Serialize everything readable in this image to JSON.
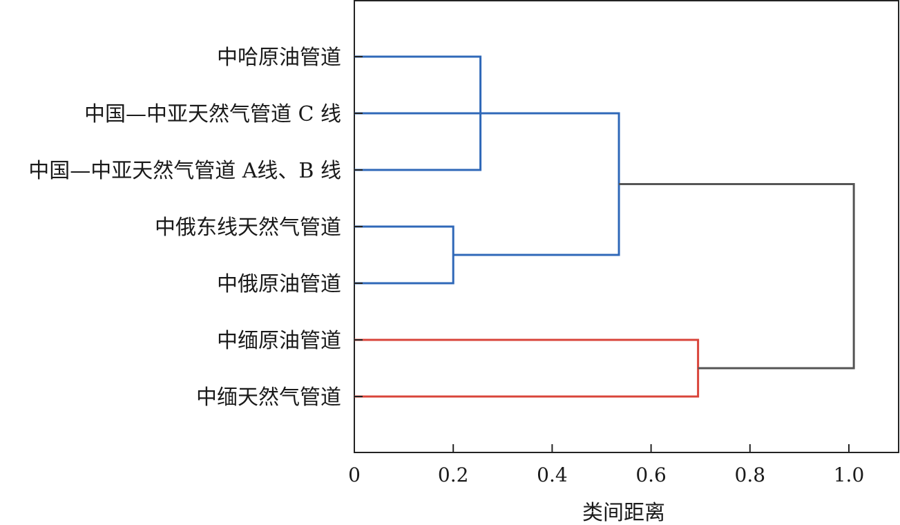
{
  "chart_data": {
    "type": "dendrogram",
    "orientation": "horizontal",
    "title": "",
    "xlabel": "类间距离",
    "ylabel": "",
    "xlim": [
      0,
      1.1
    ],
    "xticks": [
      0,
      0.2,
      0.4,
      0.6,
      0.8,
      1.0
    ],
    "xtick_labels": [
      "0",
      "0.2",
      "0.4",
      "0.6",
      "0.8",
      "1.0"
    ],
    "grid": false,
    "legend": "none",
    "leaves": [
      "中哈原油管道",
      "中国—中亚天然气管道 C 线",
      "中国—中亚天然气管道 A线、B 线",
      "中俄东线天然气管道",
      "中俄原油管道",
      "中缅原油管道",
      "中缅天然气管道"
    ],
    "merges": [
      {
        "id": "m1",
        "left": 0,
        "right": 2,
        "height": 0.255,
        "color": "#2f68b8"
      },
      {
        "id": "m2",
        "left": 3,
        "right": 4,
        "height": 0.2,
        "color": "#2f68b8"
      },
      {
        "id": "m3",
        "left": "m1",
        "right": "m2",
        "height": 0.535,
        "color": "#2f68b8"
      },
      {
        "id": "m4",
        "left": 5,
        "right": 6,
        "height": 0.695,
        "color": "#d9443a"
      },
      {
        "id": "m5",
        "left": "m3",
        "right": "m4",
        "height": 1.01,
        "color": "#555555"
      }
    ],
    "extra_links": [
      {
        "from_leaf": 1,
        "to": "m1",
        "color": "#2f68b8"
      }
    ]
  }
}
